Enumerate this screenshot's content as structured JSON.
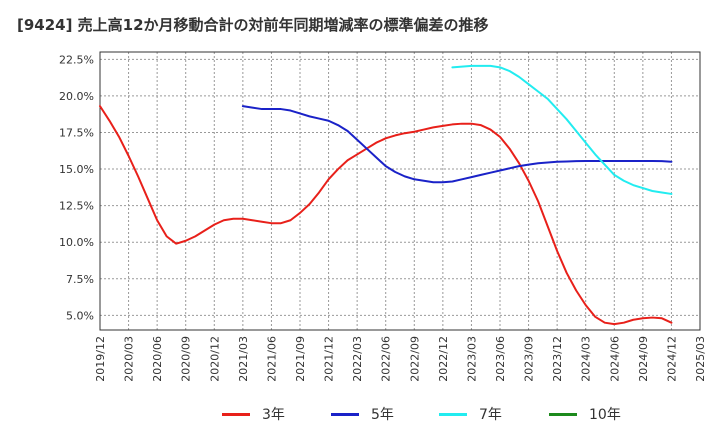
{
  "title": "[9424]  売上高12か月移動合計の対前年同期増減率の標準偏差の推移",
  "chart_data": {
    "type": "line",
    "xlabel": "",
    "ylabel": "",
    "ylim": [
      4.0,
      23.0
    ],
    "y_ticks": [
      5.0,
      7.5,
      10.0,
      12.5,
      15.0,
      17.5,
      20.0,
      22.5
    ],
    "y_tick_labels": [
      "5.0%",
      "7.5%",
      "10.0%",
      "12.5%",
      "15.0%",
      "17.5%",
      "20.0%",
      "22.5%"
    ],
    "x_tick_labels": [
      "2019/12",
      "2020/03",
      "2020/06",
      "2020/09",
      "2020/12",
      "2021/03",
      "2021/06",
      "2021/09",
      "2021/12",
      "2022/03",
      "2022/06",
      "2022/09",
      "2022/12",
      "2023/03",
      "2023/06",
      "2023/09",
      "2023/12",
      "2024/03",
      "2024/06",
      "2024/09",
      "2024/12",
      "2025/03"
    ],
    "grid": true,
    "legend_position": "bottom",
    "series": [
      {
        "name": "3年",
        "color": "#e8201a",
        "x": [
          "2019/12",
          "2020/01",
          "2020/02",
          "2020/03",
          "2020/04",
          "2020/05",
          "2020/06",
          "2020/07",
          "2020/08",
          "2020/09",
          "2020/10",
          "2020/11",
          "2020/12",
          "2021/01",
          "2021/02",
          "2021/03",
          "2021/04",
          "2021/05",
          "2021/06",
          "2021/07",
          "2021/08",
          "2021/09",
          "2021/10",
          "2021/11",
          "2021/12",
          "2022/01",
          "2022/02",
          "2022/03",
          "2022/04",
          "2022/05",
          "2022/06",
          "2022/07",
          "2022/08",
          "2022/09",
          "2022/10",
          "2022/11",
          "2022/12",
          "2023/01",
          "2023/02",
          "2023/03",
          "2023/04",
          "2023/05",
          "2023/06",
          "2023/07",
          "2023/08",
          "2023/09",
          "2023/10",
          "2023/11",
          "2023/12",
          "2024/01",
          "2024/02",
          "2024/03",
          "2024/04",
          "2024/05",
          "2024/06",
          "2024/07",
          "2024/08",
          "2024/09",
          "2024/10",
          "2024/11",
          "2024/12"
        ],
        "values": [
          19.3,
          18.3,
          17.2,
          15.9,
          14.5,
          13.0,
          11.5,
          10.4,
          9.9,
          10.1,
          10.4,
          10.8,
          11.2,
          11.5,
          11.6,
          11.6,
          11.5,
          11.4,
          11.3,
          11.3,
          11.5,
          12.0,
          12.6,
          13.4,
          14.3,
          15.0,
          15.6,
          16.0,
          16.4,
          16.8,
          17.1,
          17.3,
          17.45,
          17.55,
          17.7,
          17.85,
          17.95,
          18.05,
          18.1,
          18.1,
          18.0,
          17.7,
          17.2,
          16.4,
          15.4,
          14.2,
          12.8,
          11.1,
          9.4,
          7.9,
          6.7,
          5.7,
          4.9,
          4.5,
          4.4,
          4.5,
          4.7,
          4.8,
          4.85,
          4.8,
          4.5
        ]
      },
      {
        "name": "5年",
        "color": "#1a22c8",
        "x": [
          "2021/03",
          "2021/04",
          "2021/05",
          "2021/06",
          "2021/07",
          "2021/08",
          "2021/09",
          "2021/10",
          "2021/11",
          "2021/12",
          "2022/01",
          "2022/02",
          "2022/03",
          "2022/04",
          "2022/05",
          "2022/06",
          "2022/07",
          "2022/08",
          "2022/09",
          "2022/10",
          "2022/11",
          "2022/12",
          "2023/01",
          "2023/02",
          "2023/03",
          "2023/04",
          "2023/05",
          "2023/06",
          "2023/07",
          "2023/08",
          "2023/09",
          "2023/10",
          "2023/11",
          "2023/12",
          "2024/01",
          "2024/02",
          "2024/03",
          "2024/04",
          "2024/05",
          "2024/06",
          "2024/07",
          "2024/08",
          "2024/09",
          "2024/10",
          "2024/11",
          "2024/12"
        ],
        "values": [
          19.3,
          19.2,
          19.1,
          19.1,
          19.1,
          19.0,
          18.8,
          18.6,
          18.45,
          18.3,
          18.0,
          17.6,
          17.0,
          16.4,
          15.8,
          15.2,
          14.8,
          14.5,
          14.3,
          14.2,
          14.1,
          14.1,
          14.15,
          14.3,
          14.45,
          14.6,
          14.75,
          14.9,
          15.05,
          15.2,
          15.3,
          15.4,
          15.45,
          15.5,
          15.52,
          15.54,
          15.55,
          15.55,
          15.55,
          15.55,
          15.55,
          15.55,
          15.55,
          15.55,
          15.54,
          15.5
        ]
      },
      {
        "name": "7年",
        "color": "#22ecf0",
        "x": [
          "2023/01",
          "2023/02",
          "2023/03",
          "2023/04",
          "2023/05",
          "2023/06",
          "2023/07",
          "2023/08",
          "2023/09",
          "2023/10",
          "2023/11",
          "2023/12",
          "2024/01",
          "2024/02",
          "2024/03",
          "2024/04",
          "2024/05",
          "2024/06",
          "2024/07",
          "2024/08",
          "2024/09",
          "2024/10",
          "2024/11",
          "2024/12"
        ],
        "values": [
          21.95,
          22.0,
          22.05,
          22.05,
          22.05,
          21.95,
          21.7,
          21.3,
          20.8,
          20.3,
          19.8,
          19.1,
          18.4,
          17.6,
          16.8,
          16.0,
          15.3,
          14.6,
          14.2,
          13.9,
          13.7,
          13.5,
          13.4,
          13.3
        ]
      },
      {
        "name": "10年",
        "color": "#1c8a1c",
        "x": [],
        "values": []
      }
    ]
  }
}
